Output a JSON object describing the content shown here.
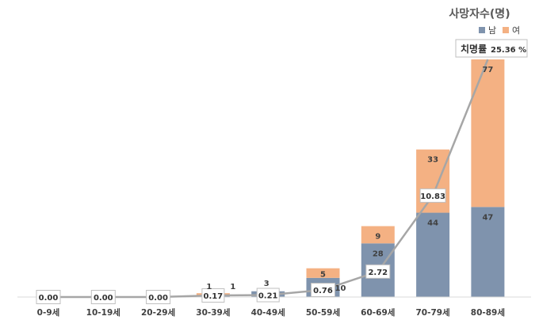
{
  "chart_data": {
    "type": "bar",
    "stacked": true,
    "categories": [
      "0-9세",
      "10-19세",
      "20-29세",
      "30-39세",
      "40-49세",
      "50-59세",
      "60-69세",
      "70-79세",
      "80-89세"
    ],
    "series": [
      {
        "name": "남",
        "color": "#7f93ad",
        "values": [
          0,
          0,
          0,
          1,
          3,
          10,
          28,
          44,
          47
        ]
      },
      {
        "name": "여",
        "color": "#f4b183",
        "values": [
          0,
          0,
          0,
          1,
          0,
          5,
          9,
          33,
          77
        ]
      }
    ],
    "line": {
      "values": [
        "0.00",
        "0.00",
        "0.00",
        "0.17",
        "0.21",
        "0.76",
        "2.72",
        "10.83",
        "25.36"
      ],
      "color": "#a6a6a6"
    },
    "legend_title": "사망자수(명)",
    "callout": {
      "label": "치명률",
      "value": "25.36 %"
    },
    "grid": false,
    "legend_position": "top-right"
  }
}
